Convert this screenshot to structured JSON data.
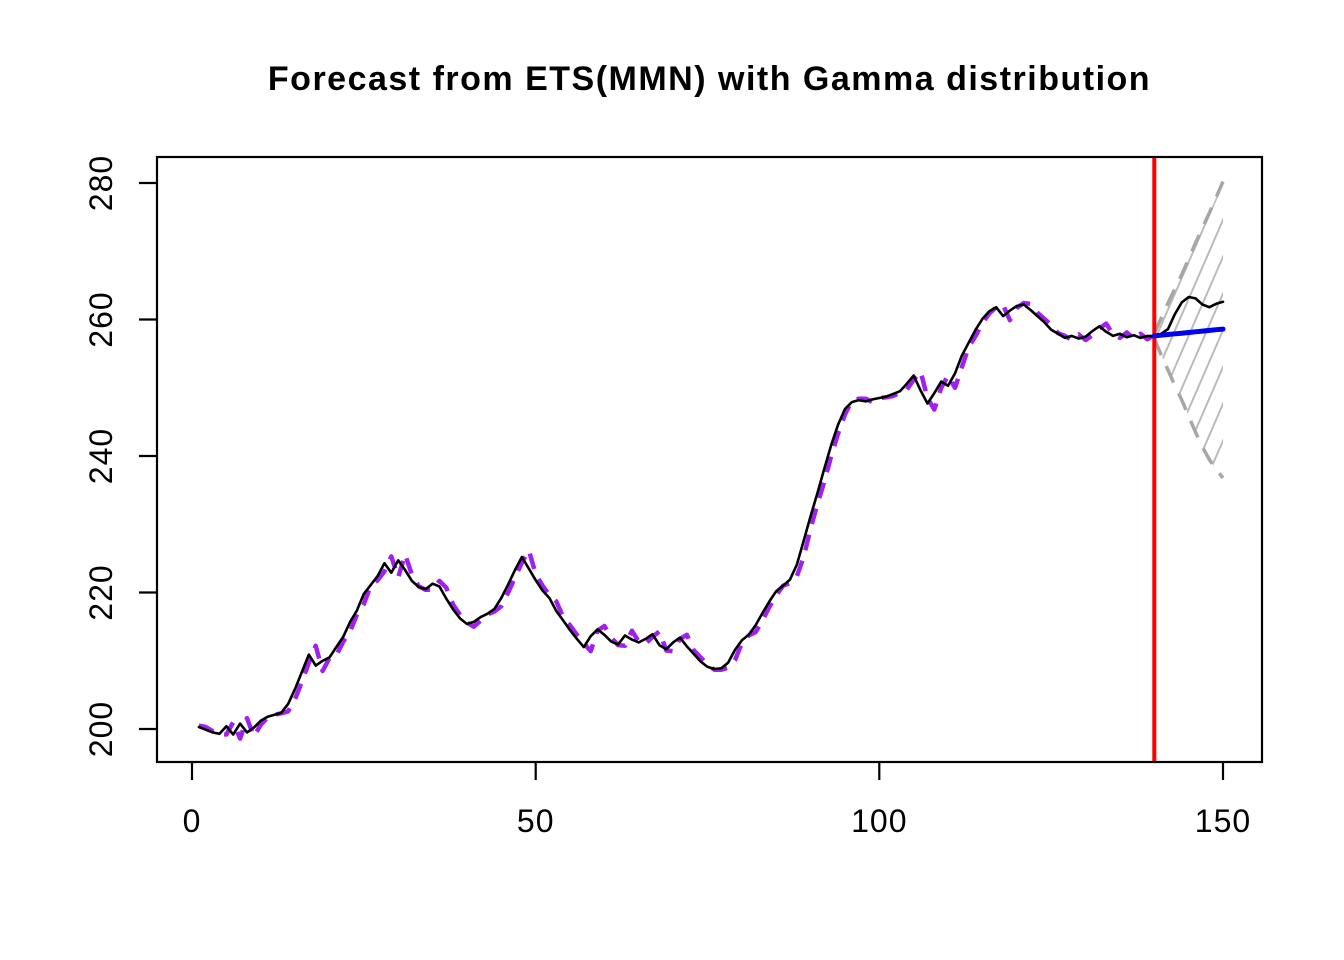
{
  "chart_data": {
    "type": "line",
    "title": "Forecast from ETS(MMN) with Gamma distribution",
    "xlabel": "",
    "ylabel": "",
    "xlim": [
      -5.09,
      155.67
    ],
    "ylim": [
      195.17,
      283.81
    ],
    "x_ticks": [
      0,
      50,
      100,
      150
    ],
    "y_ticks": [
      200,
      220,
      240,
      260,
      280
    ],
    "grid": false,
    "legend": "none",
    "forecast_origin": 140,
    "forecast_horizon": 10,
    "colors": {
      "actual": "#000000",
      "fitted": "#A020F0",
      "forecast_mean": "#0000EE",
      "interval_bound": "#A6A6A6",
      "interval_hatch": "#BBBBBB",
      "origin_line": "#FF0000",
      "axis": "#000000"
    },
    "series": [
      {
        "name": "Actual",
        "role": "actual",
        "style": "solid",
        "color": "#000000",
        "x_start": 1,
        "values": [
          200.3,
          199.9,
          199.5,
          199.3,
          200.4,
          199.2,
          200.8,
          199.5,
          200.2,
          201.2,
          201.8,
          202.1,
          202.4,
          203.7,
          205.9,
          208.4,
          210.9,
          209.3,
          210.0,
          210.5,
          212.0,
          213.5,
          215.7,
          217.4,
          219.8,
          221.1,
          222.4,
          224.3,
          222.9,
          224.7,
          223.3,
          221.7,
          220.8,
          220.5,
          221.3,
          220.9,
          219.1,
          217.5,
          216.2,
          215.4,
          215.7,
          216.4,
          216.9,
          217.6,
          219.2,
          221.2,
          223.3,
          225.2,
          223.5,
          221.8,
          220.3,
          219.2,
          217.3,
          215.9,
          214.5,
          213.2,
          212.0,
          213.6,
          214.6,
          213.8,
          212.8,
          212.4,
          213.7,
          213.1,
          212.7,
          213.2,
          213.9,
          212.3,
          211.7,
          212.7,
          213.4,
          212.1,
          211.0,
          209.9,
          209.1,
          208.8,
          208.9,
          209.7,
          211.6,
          213.0,
          213.8,
          215.2,
          217.0,
          218.7,
          220.2,
          221.0,
          221.9,
          224.1,
          227.6,
          231.2,
          234.6,
          238.2,
          241.6,
          244.6,
          246.9,
          247.9,
          248.2,
          248.0,
          248.3,
          248.5,
          248.7,
          249.1,
          249.5,
          250.6,
          251.8,
          249.6,
          247.7,
          249.2,
          250.9,
          250.3,
          252.1,
          254.7,
          256.6,
          258.5,
          260.1,
          261.2,
          261.8,
          260.5,
          261.3,
          262.0,
          262.2,
          261.4,
          260.5,
          259.6,
          258.5,
          257.9,
          257.3,
          257.6,
          257.2,
          257.5,
          258.3,
          259.0,
          258.2,
          257.6,
          257.9,
          257.4,
          257.7,
          257.3,
          257.6,
          257.5,
          257.9,
          258.6,
          260.8,
          262.5,
          263.3,
          263.1,
          262.2,
          261.8,
          262.3,
          262.6
        ]
      },
      {
        "name": "Fitted",
        "role": "fitted",
        "style": "dashed",
        "color": "#A020F0",
        "x_start": 1,
        "values": [
          200.5,
          200.3,
          199.7,
          199.3,
          199.2,
          201.0,
          198.6,
          201.6,
          198.9,
          200.6,
          201.7,
          202.1,
          202.3,
          202.6,
          204.4,
          207.0,
          209.7,
          212.2,
          208.5,
          210.4,
          210.8,
          212.8,
          214.3,
          216.8,
          218.3,
          221.0,
          221.8,
          223.1,
          225.3,
          222.2,
          225.6,
          222.6,
          220.9,
          220.4,
          220.4,
          221.7,
          220.7,
          218.2,
          216.7,
          215.6,
          215.0,
          215.9,
          216.8,
          217.2,
          218.0,
          220.0,
          222.2,
          224.4,
          226.2,
          222.7,
          221.0,
          219.6,
          218.7,
          216.4,
          215.2,
          213.8,
          212.6,
          211.4,
          214.4,
          215.1,
          213.4,
          212.3,
          212.2,
          214.4,
          212.8,
          212.5,
          213.5,
          214.3,
          211.5,
          211.4,
          213.2,
          213.8,
          211.5,
          210.5,
          209.4,
          208.7,
          208.7,
          209.0,
          210.1,
          212.6,
          213.7,
          214.2,
          215.9,
          217.9,
          219.6,
          221.0,
          221.4,
          222.4,
          225.2,
          229.4,
          233.0,
          236.3,
          240.0,
          243.3,
          246.1,
          248.1,
          248.4,
          248.4,
          247.9,
          248.5,
          248.6,
          248.8,
          249.3,
          249.7,
          251.2,
          252.4,
          248.5,
          246.8,
          250.0,
          251.8,
          250.0,
          253.0,
          256.0,
          257.6,
          259.5,
          260.9,
          261.8,
          262.1,
          259.9,
          261.7,
          262.4,
          262.3,
          261.0,
          260.1,
          259.2,
          258.0,
          257.6,
          257.0,
          257.8,
          257.0,
          257.7,
          258.7,
          259.4,
          257.8,
          257.3,
          258.1,
          257.2,
          257.9,
          257.1,
          257.8
        ]
      },
      {
        "name": "Point forecast",
        "role": "forecast_mean",
        "style": "solid",
        "color": "#0000EE",
        "x_start": 140,
        "values": [
          257.6,
          257.7,
          257.8,
          257.9,
          258.0,
          258.1,
          258.2,
          258.3,
          258.4,
          258.5,
          258.6
        ]
      },
      {
        "name": "Prediction interval upper bound",
        "role": "upper_bound",
        "style": "dashed",
        "color": "#A6A6A6",
        "x_start": 140,
        "values": [
          258.0,
          260.2,
          262.4,
          264.5,
          266.6,
          268.9,
          271.2,
          273.4,
          275.6,
          277.9,
          280.2
        ]
      },
      {
        "name": "Prediction interval lower bound",
        "role": "lower_bound",
        "style": "dashed",
        "color": "#A6A6A6",
        "x_start": 140,
        "values": [
          257.2,
          254.8,
          252.6,
          250.3,
          248.2,
          245.8,
          243.5,
          241.3,
          239.5,
          238.0,
          236.8
        ]
      }
    ],
    "annotations": {
      "forecast_origin_line": {
        "x": 140,
        "color": "#FF0000",
        "orientation": "vertical"
      }
    }
  }
}
